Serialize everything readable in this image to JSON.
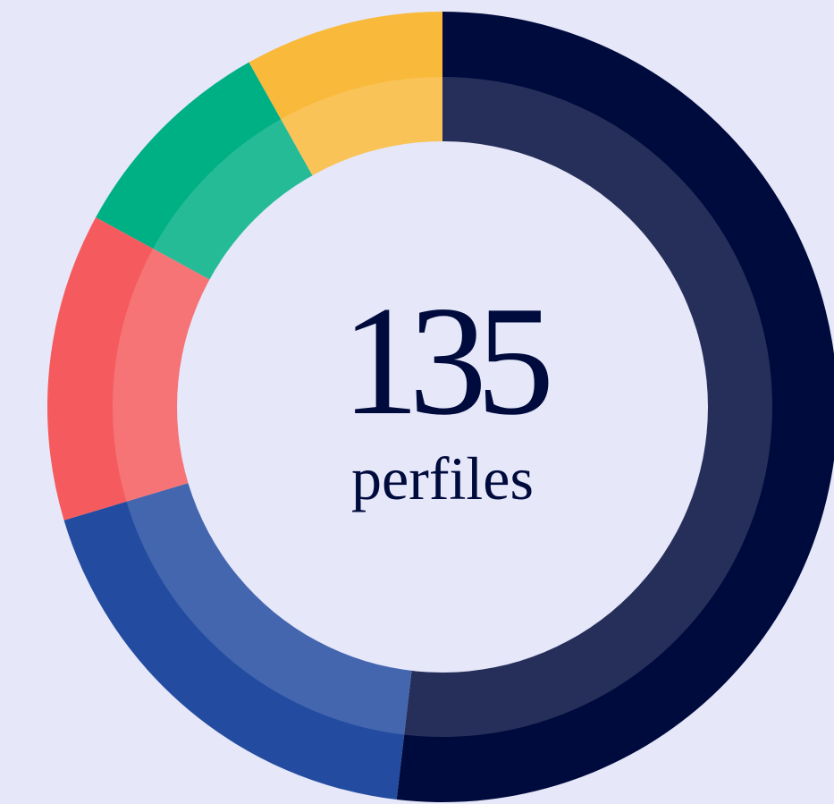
{
  "chart_data": {
    "type": "donut",
    "center_value": 135,
    "center_label": "perfiles",
    "categories": [
      null,
      null,
      null,
      null,
      null
    ],
    "values": [
      70,
      25,
      17,
      12,
      11
    ],
    "colors": [
      "#000b3d",
      "#234ca0",
      "#f55b5e",
      "#00b085",
      "#f9b93a"
    ]
  }
}
